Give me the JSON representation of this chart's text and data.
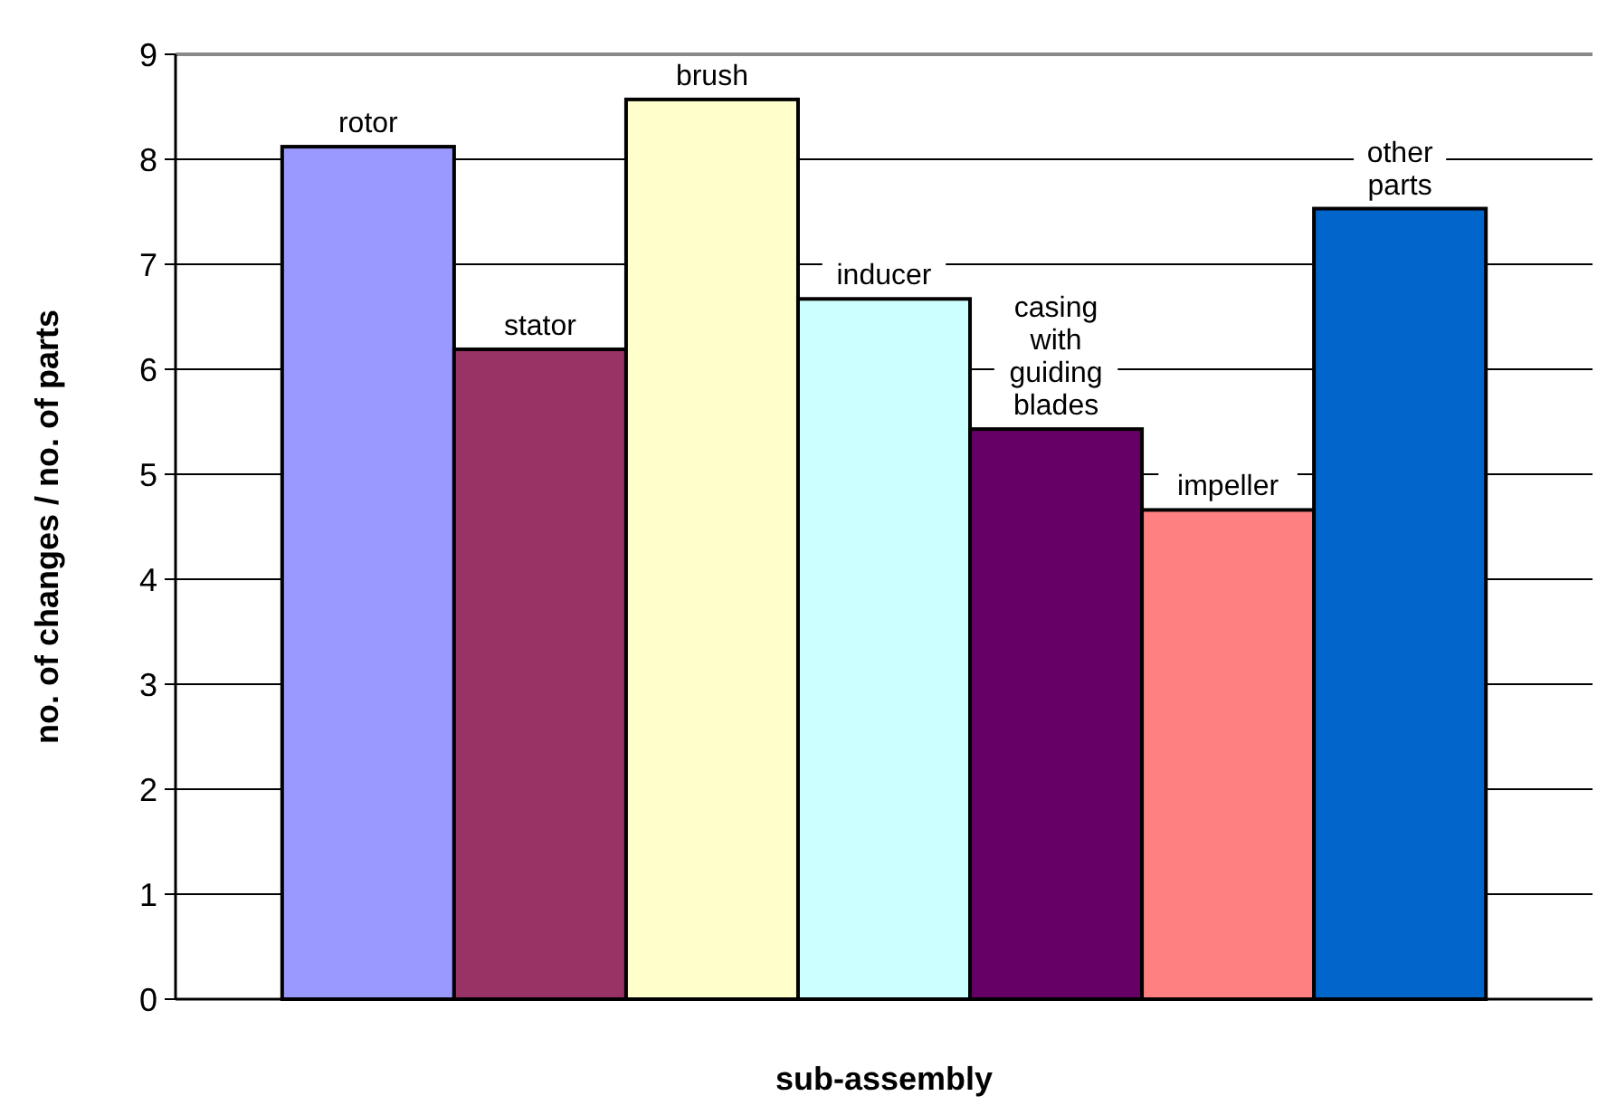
{
  "chart_data": {
    "type": "bar",
    "xlabel": "sub-assembly",
    "ylabel": "no. of changes / no. of parts",
    "categories": [
      "rotor",
      "stator",
      "brush",
      "inducer",
      "casing with guiding blades",
      "impeller",
      "other parts"
    ],
    "values": [
      8.12,
      6.19,
      8.57,
      6.67,
      5.43,
      4.66,
      7.53
    ],
    "colors": [
      "#9999ff",
      "#993366",
      "#ffffcc",
      "#ccffff",
      "#660066",
      "#ff8080",
      "#0066cc"
    ],
    "ylim": [
      0,
      9
    ],
    "yticks": [
      0,
      1,
      2,
      3,
      4,
      5,
      6,
      7,
      8,
      9
    ],
    "grid": "y"
  }
}
